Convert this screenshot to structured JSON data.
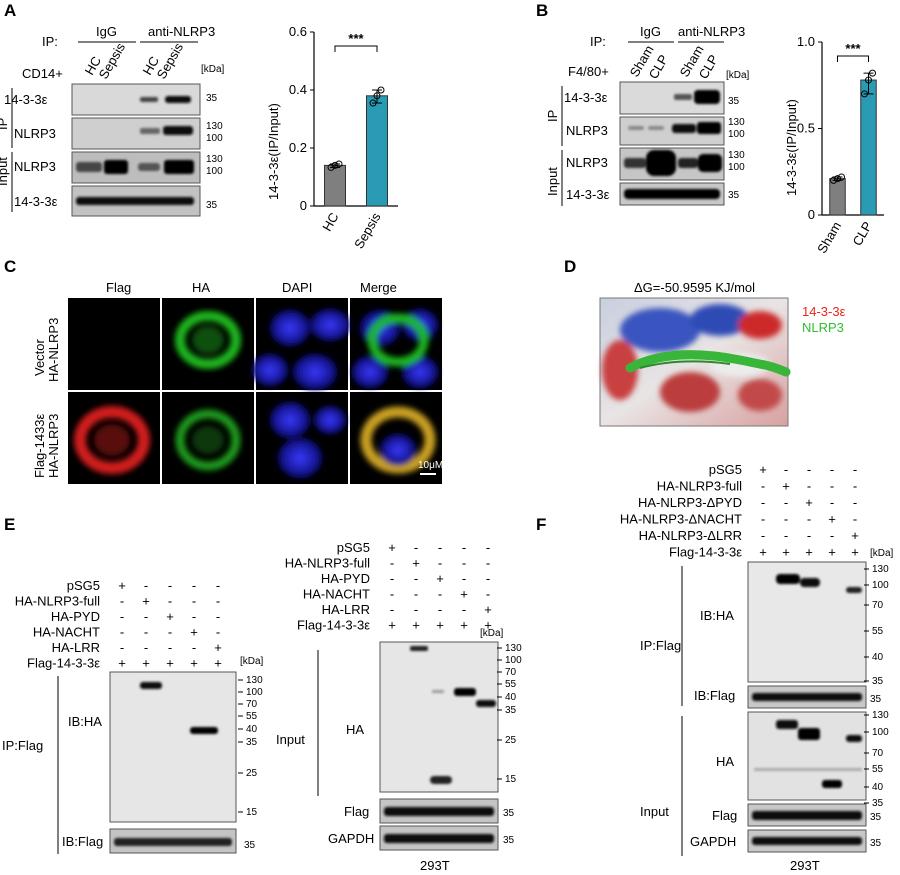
{
  "panels": {
    "A": "A",
    "B": "B",
    "C": "C",
    "D": "D",
    "E": "E",
    "F": "F"
  },
  "colors": {
    "gray": "#7f7f7f",
    "teal": "#2a9bb4",
    "red": "#e8251b",
    "green": "#2fbf2f",
    "blot_bg": "#d6d6d6"
  },
  "panel_a": {
    "ip_label": "IP:",
    "igg": "IgG",
    "anti": "anti-NLRP3",
    "cell": "CD14+",
    "lanes": [
      "HC",
      "Sepsis",
      "HC",
      "Sepsis"
    ],
    "group_ip": "IP",
    "group_input": "Input",
    "rows": [
      "14-3-3ε",
      "NLRP3",
      "NLRP3",
      "14-3-3ε"
    ],
    "kda": "[kDa]",
    "mw": [
      "35",
      "130",
      "100",
      "130",
      "100",
      "35"
    ]
  },
  "panel_b": {
    "ip_label": "IP:",
    "igg": "IgG",
    "anti": "anti-NLRP3",
    "cell": "F4/80+",
    "lanes": [
      "Sham",
      "CLP",
      "Sham",
      "CLP"
    ],
    "group_ip": "IP",
    "group_input": "Input",
    "rows": [
      "14-3-3ε",
      "NLRP3",
      "NLRP3",
      "14-3-3ε"
    ],
    "kda": "[kDa]",
    "mw": [
      "35",
      "130",
      "100",
      "130",
      "100",
      "35"
    ]
  },
  "chart_data": [
    {
      "type": "bar",
      "categories": [
        "HC",
        "Sepsis"
      ],
      "values": [
        0.14,
        0.38
      ],
      "points": [
        [
          0.133,
          0.14,
          0.145
        ],
        [
          0.355,
          0.38,
          0.4
        ]
      ],
      "ylabel": "14-3-3ε(IP/Input)",
      "ylim": [
        0,
        0.6
      ],
      "yticks": [
        "0",
        "0.2",
        "0.4",
        "0.6"
      ],
      "significance": "***"
    },
    {
      "type": "bar",
      "categories": [
        "Sham",
        "CLP"
      ],
      "values": [
        0.21,
        0.78
      ],
      "points": [
        [
          0.2,
          0.21,
          0.22
        ],
        [
          0.7,
          0.78,
          0.82
        ]
      ],
      "ylabel": "14-3-3ε(IP/Input)",
      "ylim": [
        0,
        1.0
      ],
      "yticks": [
        "0",
        "0.5",
        "1.0"
      ],
      "significance": "***"
    }
  ],
  "panel_c": {
    "cols": [
      "Flag",
      "HA",
      "DAPI",
      "Merge"
    ],
    "rows": [
      [
        "Vector",
        "HA-NLRP3"
      ],
      [
        "Flag-1433ε",
        "HA-NLRP3"
      ]
    ],
    "scale": "10μM"
  },
  "panel_d": {
    "title": "ΔG=-50.9595 KJ/mol",
    "legend_red": "14-3-3ε",
    "legend_green": "NLRP3"
  },
  "panel_e": {
    "rows": [
      "pSG5",
      "HA-NLRP3-full",
      "HA-PYD",
      "HA-NACHT",
      "HA-LRR",
      "Flag-14-3-3ε"
    ],
    "signs": [
      [
        "+",
        "-",
        "-",
        "-",
        "-"
      ],
      [
        "-",
        "+",
        "-",
        "-",
        "-"
      ],
      [
        "-",
        "-",
        "+",
        "-",
        "-"
      ],
      [
        "-",
        "-",
        "-",
        "+",
        "-"
      ],
      [
        "-",
        "-",
        "-",
        "-",
        "+"
      ],
      [
        "+",
        "+",
        "+",
        "+",
        "+"
      ]
    ],
    "kda": "[kDa]",
    "ip_group": "IP:Flag",
    "input_group": "Input",
    "ib_ha": "IB:HA",
    "ib_flag": "IB:Flag",
    "ha": "HA",
    "flag": "Flag",
    "gapdh": "GAPDH",
    "mw_ip": [
      "130",
      "100",
      "70",
      "55",
      "40",
      "35",
      "25",
      "15"
    ],
    "mw_ipflag": "35",
    "mw_input": [
      "130",
      "100",
      "70",
      "55",
      "40",
      "35",
      "25",
      "15"
    ],
    "mw_flag": "35",
    "mw_gapdh": "35",
    "cell": "293T"
  },
  "panel_f": {
    "rows": [
      "pSG5",
      "HA-NLRP3-full",
      "HA-NLRP3-ΔPYD",
      "HA-NLRP3-ΔNACHT",
      "HA-NLRP3-ΔLRR",
      "Flag-14-3-3ε"
    ],
    "signs": [
      [
        "+",
        "-",
        "-",
        "-",
        "-"
      ],
      [
        "-",
        "+",
        "-",
        "-",
        "-"
      ],
      [
        "-",
        "-",
        "+",
        "-",
        "-"
      ],
      [
        "-",
        "-",
        "-",
        "+",
        "-"
      ],
      [
        "-",
        "-",
        "-",
        "-",
        "+"
      ],
      [
        "+",
        "+",
        "+",
        "+",
        "+"
      ]
    ],
    "kda": "[kDa]",
    "ip_group": "IP:Flag",
    "input_group": "Input",
    "ib_ha": "IB:HA",
    "ib_flag": "IB:Flag",
    "ha": "HA",
    "flag": "Flag",
    "gapdh": "GAPDH",
    "mw_ip": [
      "130",
      "100",
      "70",
      "55",
      "40",
      "35"
    ],
    "mw_ipflag": "35",
    "mw_input": [
      "130",
      "100",
      "70",
      "55",
      "40",
      "35"
    ],
    "mw_flag": "35",
    "mw_gapdh": "35",
    "cell": "293T"
  }
}
